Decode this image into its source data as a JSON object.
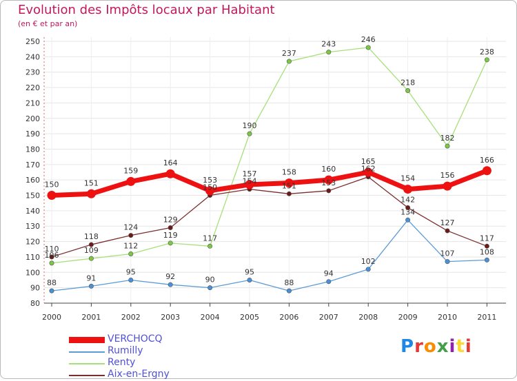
{
  "header": {
    "title": "Evolution des Impôts locaux par Habitant",
    "subtitle": "(en € et par an)"
  },
  "logo": {
    "letters": [
      "P",
      "r",
      "o",
      "x",
      "i",
      "t",
      "i"
    ],
    "colors": [
      "#1e88e5",
      "#e53935",
      "#fb8c00",
      "#43a047",
      "#8e24aa",
      "#fdd835",
      "#e53935"
    ]
  },
  "chart_data": {
    "type": "line",
    "title": "Evolution des Impôts locaux par Habitant",
    "subtitle": "(en € et par an)",
    "xlabel": "",
    "ylabel": "",
    "x": [
      "2000",
      "2001",
      "2002",
      "2003",
      "2004",
      "2005",
      "2006",
      "2007",
      "2008",
      "2009",
      "2010",
      "2011"
    ],
    "ylim": [
      80,
      250
    ],
    "yticks": [
      80,
      90,
      100,
      110,
      120,
      130,
      140,
      150,
      160,
      170,
      180,
      190,
      200,
      210,
      220,
      230,
      240,
      250
    ],
    "grid": true,
    "legend_position": "bottom-left",
    "series": [
      {
        "name": "Rumilly",
        "color": "#5b9bd5",
        "marker": "#4a90d9",
        "values": [
          88,
          91,
          95,
          92,
          90,
          95,
          88,
          94,
          102,
          134,
          107,
          108
        ]
      },
      {
        "name": "Renty",
        "color": "#a6e07a",
        "marker": "#7cc844",
        "values": [
          106,
          109,
          112,
          119,
          117,
          190,
          237,
          243,
          246,
          218,
          182,
          238
        ]
      },
      {
        "name": "Aix-en-Ergny",
        "color": "#7b2d2d",
        "marker": "#6b1a1a",
        "values": [
          110,
          118,
          124,
          129,
          150,
          154,
          151,
          153,
          162,
          142,
          127,
          117
        ]
      },
      {
        "name": "VERCHOCQ",
        "color": "#ee1111",
        "marker": "#ee1111",
        "values": [
          150,
          151,
          159,
          164,
          153,
          157,
          158,
          160,
          165,
          154,
          156,
          166
        ]
      }
    ],
    "data_labels": [
      {
        "series": "Rumilly",
        "labels": [
          "88",
          "91",
          "95",
          "92",
          "90",
          "95",
          "88",
          "94",
          "102",
          "134",
          "107",
          "108"
        ]
      },
      {
        "series": "Renty",
        "labels": [
          "106",
          "109",
          "112",
          "119",
          "117",
          "190",
          "237",
          "243",
          "246",
          "218",
          "182",
          "238"
        ]
      },
      {
        "series": "Aix-en-Ergny",
        "labels": [
          "110",
          "118",
          "124",
          "129",
          "150",
          "154",
          "151",
          "153",
          "162",
          "142",
          "127",
          "117"
        ]
      },
      {
        "series": "VERCHOCQ",
        "labels": [
          "150",
          "151",
          "159",
          "164",
          "153",
          "157",
          "158",
          "160",
          "165",
          "154",
          "156",
          "166"
        ]
      }
    ],
    "legend": [
      "VERCHOCQ",
      "Rumilly",
      "Renty",
      "Aix-en-Ergny"
    ]
  }
}
